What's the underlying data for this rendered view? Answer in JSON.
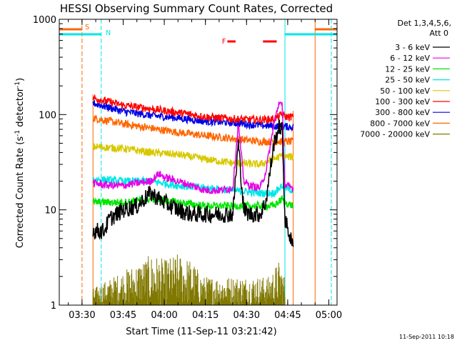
{
  "chart_data": {
    "type": "line",
    "title": "HESSI Observing Summary Count Rates, Corrected",
    "xlabel": "Start Time (11-Sep-11 03:21:42)",
    "ylabel": "Corrected Count Rate (s⁻¹ detector⁻¹)",
    "ylabel_parts": {
      "main": "Corrected Count Rate (s",
      "sup1": "-1",
      "mid": " detector",
      "sup2": "-1",
      "end": ")"
    },
    "yscale": "log",
    "xlim": [
      "03:21:42",
      "05:03"
    ],
    "ylim": [
      1,
      1000
    ],
    "x_ticks": [
      "03:30",
      "03:45",
      "04:00",
      "04:15",
      "04:30",
      "04:45",
      "05:00"
    ],
    "y_ticks": [
      {
        "value": 1,
        "label": "1"
      },
      {
        "value": 10,
        "label": "10"
      },
      {
        "value": 100,
        "label": "100"
      },
      {
        "value": 1000,
        "label": "1000"
      }
    ],
    "legend_header": [
      "Det 1,3,4,5,6,",
      "Att 0"
    ],
    "legend_placement": "right",
    "series": [
      {
        "name": "3 - 6 keV",
        "color": "#000000",
        "x": [
          "03:34",
          "03:38",
          "03:40",
          "03:45",
          "03:50",
          "03:55",
          "04:00",
          "04:05",
          "04:10",
          "04:15",
          "04:20",
          "04:25",
          "04:27",
          "04:29",
          "04:31",
          "04:35",
          "04:37",
          "04:40",
          "04:42",
          "04:43",
          "04:44",
          "04:47"
        ],
        "y": [
          6,
          6,
          8,
          10,
          11,
          15,
          12,
          10,
          9,
          9,
          9,
          9,
          50,
          10,
          9,
          9,
          12,
          50,
          75,
          70,
          8,
          4
        ]
      },
      {
        "name": "6 - 12 keV",
        "color": "#e600e6",
        "x": [
          "03:34",
          "03:40",
          "03:45",
          "03:50",
          "03:55",
          "03:58",
          "04:00",
          "04:05",
          "04:10",
          "04:15",
          "04:20",
          "04:25",
          "04:27",
          "04:29",
          "04:31",
          "04:35",
          "04:37",
          "04:40",
          "04:42",
          "04:43",
          "04:44",
          "04:47"
        ],
        "y": [
          19,
          18,
          18,
          19,
          20,
          24,
          22,
          20,
          18,
          16,
          16,
          17,
          80,
          20,
          18,
          17,
          25,
          80,
          140,
          120,
          18,
          17
        ]
      },
      {
        "name": "12 - 25 keV",
        "color": "#00e600",
        "x": [
          "03:34",
          "03:45",
          "03:55",
          "04:05",
          "04:15",
          "04:25",
          "04:35",
          "04:40",
          "04:43",
          "04:44",
          "04:47"
        ],
        "y": [
          12,
          12,
          13,
          12,
          11,
          11,
          11,
          11,
          13,
          12,
          11
        ]
      },
      {
        "name": "25 - 50 keV",
        "color": "#00e6e6",
        "x": [
          "03:34",
          "03:45",
          "03:55",
          "04:05",
          "04:15",
          "04:25",
          "04:35",
          "04:40",
          "04:43",
          "04:44",
          "04:47"
        ],
        "y": [
          21,
          20,
          20,
          18,
          17,
          16,
          15,
          15,
          18,
          17,
          16
        ]
      },
      {
        "name": "50 - 100 keV",
        "color": "#d8c800",
        "x": [
          "03:34",
          "03:45",
          "03:50",
          "03:55",
          "04:05",
          "04:15",
          "04:25",
          "04:35",
          "04:43",
          "04:44",
          "04:47"
        ],
        "y": [
          46,
          44,
          42,
          40,
          38,
          34,
          31,
          30,
          37,
          36,
          36
        ]
      },
      {
        "name": "100 - 300 keV",
        "color": "#ff0000",
        "x": [
          "03:34",
          "03:45",
          "03:55",
          "04:05",
          "04:15",
          "04:25",
          "04:35",
          "04:40",
          "04:43",
          "04:44",
          "04:47"
        ],
        "y": [
          150,
          125,
          115,
          105,
          95,
          90,
          88,
          90,
          100,
          95,
          95
        ]
      },
      {
        "name": "300 - 800 keV",
        "color": "#0000e6",
        "x": [
          "03:34",
          "03:45",
          "03:55",
          "04:05",
          "04:15",
          "04:25",
          "04:35",
          "04:43",
          "04:47"
        ],
        "y": [
          132,
          108,
          98,
          92,
          85,
          82,
          77,
          75,
          74
        ]
      },
      {
        "name": "800 - 7000 keV",
        "color": "#ff6600",
        "x": [
          "03:34",
          "03:45",
          "03:55",
          "04:05",
          "04:15",
          "04:25",
          "04:35",
          "04:43",
          "04:47"
        ],
        "y": [
          92,
          80,
          72,
          65,
          60,
          56,
          52,
          52,
          52
        ]
      },
      {
        "name": "7000 - 20000 keV",
        "color": "#807800",
        "x": [
          "03:34",
          "03:56",
          "04:00",
          "04:05",
          "04:10",
          "04:14",
          "04:38",
          "04:42",
          "04:44"
        ],
        "y": [
          1.5,
          3.5,
          3,
          3.5,
          3,
          2,
          2,
          3,
          2
        ]
      }
    ],
    "annotations": [
      {
        "text": "S",
        "color": "#ff6600",
        "x": "03:30"
      },
      {
        "text": "N",
        "color": "#00e6e6",
        "x": "03:37"
      },
      {
        "text": "F",
        "color": "#ff0000",
        "x": "04:21"
      }
    ],
    "flare_segments": [
      {
        "start": "04:23",
        "end": "04:26"
      },
      {
        "start": "04:36",
        "end": "04:41"
      }
    ],
    "saa_intervals": [
      {
        "start": "03:21:42",
        "end": "03:30"
      },
      {
        "start": "04:55",
        "end": "05:03"
      }
    ],
    "night_intervals": [
      {
        "start": "03:21:42",
        "end": "03:37"
      },
      {
        "start": "04:44",
        "end": "05:03"
      }
    ],
    "data_window": {
      "start": "03:34",
      "end": "04:47"
    },
    "footer_timestamp": "11-Sep-2011 10:18"
  }
}
